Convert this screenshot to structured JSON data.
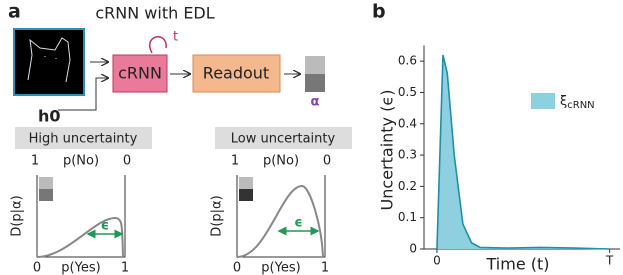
{
  "panel_a": {
    "label": "a",
    "title": "cRNN with EDL",
    "recurrence_label": "t",
    "input_label": "h0",
    "model_box": "cRNN",
    "readout_box": "Readout",
    "output_label": "α",
    "plots": [
      {
        "title": "High uncertainty",
        "top_axis_label": "p(No)",
        "top_ticks": [
          "1",
          "0"
        ],
        "y_label": "D(p|α)",
        "bottom_axis_label": "p(Yes)",
        "bottom_ticks": [
          "0",
          "1"
        ],
        "width_label": "ϵ"
      },
      {
        "title": "Low uncertainty",
        "top_axis_label": "p(No)",
        "top_ticks": [
          "1",
          "0"
        ],
        "y_label": "D(p|α)",
        "bottom_axis_label": "p(Yes)",
        "bottom_ticks": [
          "0",
          "1"
        ],
        "width_label": "ϵ"
      }
    ]
  },
  "chart_data": {
    "type": "area",
    "label": "b",
    "x_label": "Time (t)",
    "y_label": "Uncertainty (ϵ)",
    "x": [
      0,
      0.035,
      0.06,
      0.1,
      0.15,
      0.2,
      0.25,
      0.4,
      0.6,
      0.8,
      1.0
    ],
    "series": [
      {
        "name": "ξcRNN",
        "color": "#8fd0e0",
        "line_color": "#1f8fa8",
        "values": [
          0,
          0.62,
          0.56,
          0.3,
          0.08,
          0.02,
          0.005,
          0.003,
          0.005,
          0.003,
          0
        ]
      }
    ],
    "xlim": [
      -0.075,
      1.06
    ],
    "ylim": [
      0,
      0.65
    ],
    "xticks": [
      {
        "value": 0,
        "label": "0"
      },
      {
        "value": 1,
        "label": "T"
      }
    ],
    "yticks": [
      0,
      0.1,
      0.2,
      0.3,
      0.4,
      0.5,
      0.6
    ]
  }
}
